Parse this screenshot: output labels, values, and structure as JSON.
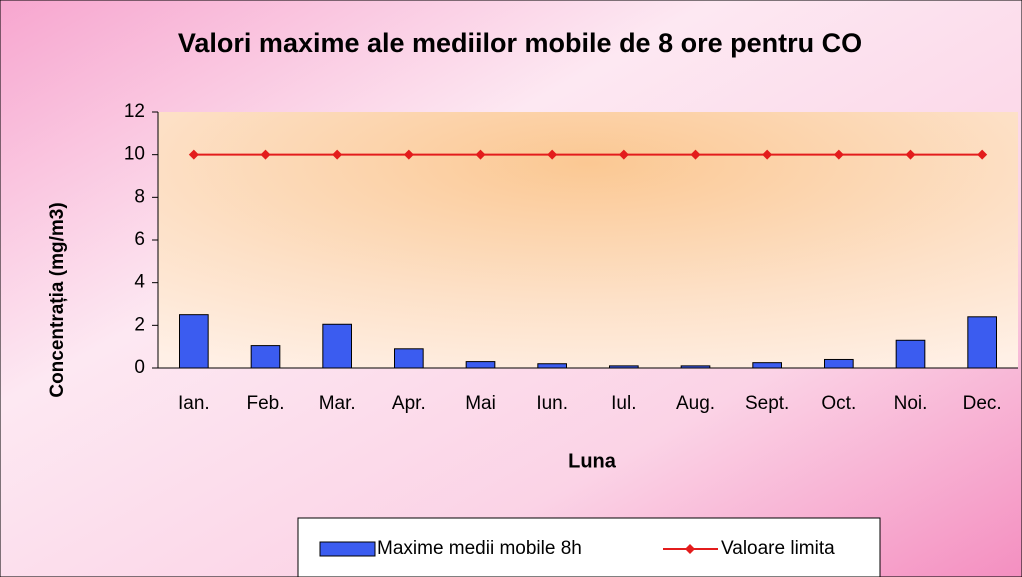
{
  "chart_data": {
    "type": "bar",
    "title": "Valori maxime ale mediilor mobile de 8 ore pentru CO",
    "x_label": "Luna",
    "y_label": "Concentrația (mg/m3)",
    "categories": [
      "Ian.",
      "Feb.",
      "Mar.",
      "Apr.",
      "Mai",
      "Iun.",
      "Iul.",
      "Aug.",
      "Sept.",
      "Oct.",
      "Noi.",
      "Dec."
    ],
    "series": [
      {
        "name": "Maxime medii mobile 8h",
        "type": "bar",
        "color": "#3b5cf0",
        "values": [
          2.5,
          1.05,
          2.05,
          0.9,
          0.3,
          0.2,
          0.1,
          0.1,
          0.25,
          0.4,
          1.3,
          2.4
        ]
      },
      {
        "name": "Valoare limita",
        "type": "line",
        "color": "#e31c1c",
        "values": [
          10,
          10,
          10,
          10,
          10,
          10,
          10,
          10,
          10,
          10,
          10,
          10
        ]
      }
    ],
    "ylim": [
      0,
      12
    ],
    "yticks": [
      0,
      2,
      4,
      6,
      8,
      10,
      12
    ],
    "grid": false,
    "legend": "bottom"
  }
}
